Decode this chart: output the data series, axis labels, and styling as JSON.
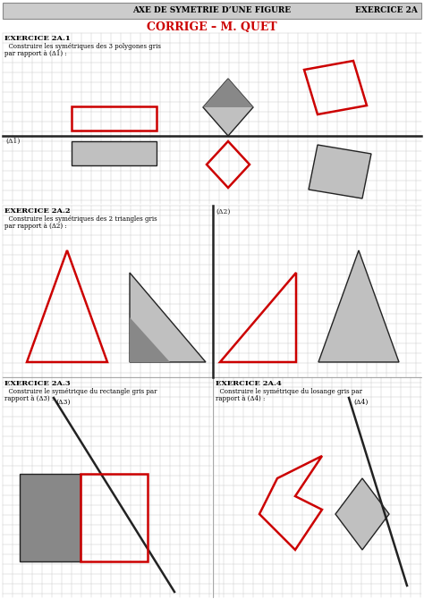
{
  "header_text": "AXE DE SYMETRIE D’UNE FIGURE",
  "header_right": "EXERCICE 2A",
  "title_main": "CORRIGE – M. QUET",
  "ex1_title": "EXERCICE 2A.1",
  "ex1_line1": "  Construire les symétriques des 3 polygones gris",
  "ex1_line2": "par rapport à (Δ1) :",
  "ex2_title": "EXERCICE 2A.2",
  "ex2_line1": "  Construire les symétriques des 2 triangles gris",
  "ex2_line2": "par rapport à (Δ2) :",
  "ex3_title": "EXERCICE 2A.3",
  "ex3_line1": "  Construire le symétrique du rectangle gris par",
  "ex3_line2": "rapport à (Δ3) :",
  "ex4_title": "EXERCICE 2A.4",
  "ex4_line1": "  Construire le symétrique du losange gris par",
  "ex4_line2": "rapport à (Δ4) :",
  "red": "#cc0000",
  "dark": "#222222",
  "lgray": "#c0c0c0",
  "dgray": "#888888",
  "grid_color": "#cccccc",
  "header_bg": "#cccccc"
}
